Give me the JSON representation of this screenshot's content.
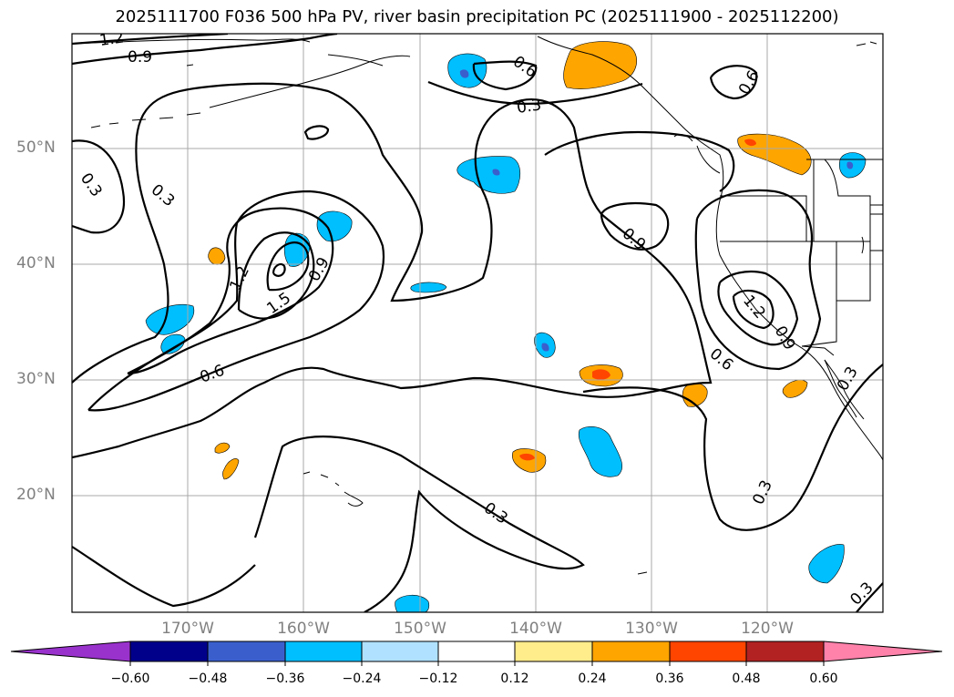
{
  "title": "2025111700 F036 500 hPa PV, river basin precipitation PC (2025111900 - 2025112200)",
  "lat_labels": [
    "50°N",
    "40°N",
    "30°N",
    "20°N"
  ],
  "lon_labels": [
    "170°W",
    "160°W",
    "150°W",
    "140°W",
    "130°W",
    "120°W"
  ],
  "contour_labels": [
    "1.2",
    "0.9",
    "0.3",
    "0.3",
    "1.2",
    "1.5",
    "0.9",
    "0.6",
    "0.6",
    "0.3",
    "0.6",
    "0.9",
    "1.2",
    "0.9",
    "0.6",
    "0.3",
    "0.3",
    "0.3",
    "0.3"
  ],
  "colorbar": {
    "ticks": [
      "−0.60",
      "−0.48",
      "−0.36",
      "−0.24",
      "−0.12",
      "0.12",
      "0.24",
      "0.36",
      "0.48",
      "0.60"
    ],
    "colors": [
      "#9932cc",
      "#00008b",
      "#3a5fcd",
      "#00bfff",
      "#b0e2ff",
      "#ffffff",
      "#ffec8b",
      "#ffa500",
      "#ff4500",
      "#b22222",
      "#ff82ab"
    ]
  }
}
